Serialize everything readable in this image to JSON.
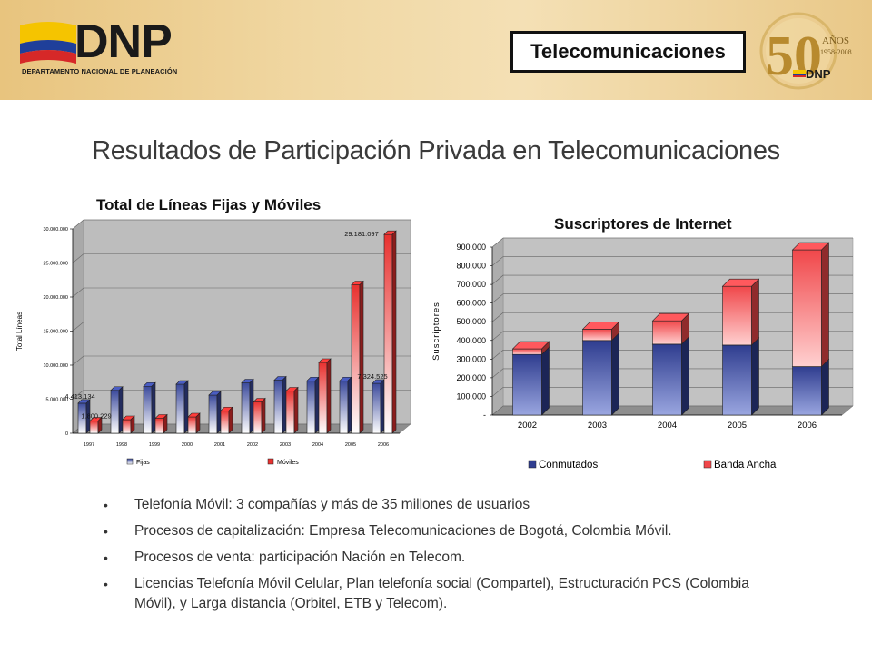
{
  "header": {
    "logo_text": "DNP",
    "logo_subtitle": "DEPARTAMENTO NACIONAL DE PLANEACIÓN",
    "section_label": "Telecomunicaciones",
    "anniversary": {
      "number": "50",
      "label": "AÑOS",
      "years": "1958-2008",
      "brand": "DNP"
    },
    "colors": {
      "band": "#efd39b",
      "flag_yellow": "#f5c400",
      "flag_blue": "#1f3f9a",
      "flag_red": "#d62828",
      "gold": "#b88a2e"
    }
  },
  "title": "Resultados de Participación Privada en Telecomunicaciones",
  "chart_data": [
    {
      "type": "bar",
      "title": "Total de Líneas Fijas y Móviles",
      "ylabel": "Total Líneas",
      "xlabel": "",
      "categories": [
        "1997",
        "1998",
        "1999",
        "2000",
        "2001",
        "2002",
        "2003",
        "2004",
        "2005",
        "2006"
      ],
      "ylim": [
        0,
        30000000
      ],
      "yticks": [
        "0",
        "5.000.000",
        "10.000.000",
        "15.000.000",
        "20.000.000",
        "25.000.000",
        "30.000.000"
      ],
      "series": [
        {
          "name": "Fijas",
          "color": "#3b4a9c",
          "values": [
            4413134,
            6300000,
            6900000,
            7200000,
            5600000,
            7400000,
            7800000,
            7700000,
            7700000,
            7324525
          ]
        },
        {
          "name": "Móviles",
          "color": "#e8312f",
          "values": [
            1800229,
            2000000,
            2200000,
            2400000,
            3300000,
            4600000,
            6200000,
            10400000,
            21800000,
            29181097
          ]
        }
      ],
      "data_labels": [
        {
          "text": "4.413.134"
        },
        {
          "text": "1.800.229"
        },
        {
          "text": "29.181.097"
        },
        {
          "text": "7.324.525"
        }
      ],
      "legend": "bottom"
    },
    {
      "type": "bar",
      "stacked": true,
      "title": "Suscriptores de Internet",
      "ylabel": "Suscriptores",
      "xlabel": "",
      "categories": [
        "2002",
        "2003",
        "2004",
        "2005",
        "2006"
      ],
      "ylim": [
        0,
        900000
      ],
      "yticks": [
        "-",
        "100.000",
        "200.000",
        "300.000",
        "400.000",
        "500.000",
        "600.000",
        "700.000",
        "800.000",
        "900.000"
      ],
      "series": [
        {
          "name": "Conmutados",
          "color": "#2f3d8f",
          "values": [
            325000,
            400000,
            380000,
            375000,
            260000
          ]
        },
        {
          "name": "Banda Ancha",
          "color": "#f0474a",
          "values": [
            30000,
            60000,
            125000,
            315000,
            625000
          ]
        }
      ],
      "legend": "bottom"
    }
  ],
  "bullets": [
    "Telefonía Móvil: 3 compañías y más de 35 millones de usuarios",
    "Procesos de capitalización: Empresa Telecomunicaciones de Bogotá, Colombia Móvil.",
    "Procesos de venta: participación Nación en Telecom.",
    "Licencias Telefonía Móvil Celular, Plan telefonía social (Compartel), Estructuración PCS (Colombia Móvil), y Larga distancia (Orbitel, ETB y Telecom)."
  ]
}
